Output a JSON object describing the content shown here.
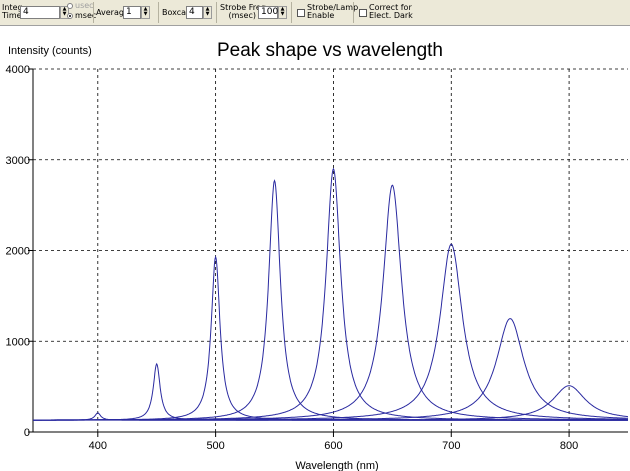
{
  "toolbar": {
    "integ_time_label_1": "Integ.",
    "integ_time_label_2": "Time",
    "integ_time_value": "4",
    "usec_label": "usec",
    "msec_label": "msec",
    "average_label": "Average",
    "average_value": "1",
    "boxcar_label": "Boxcar",
    "boxcar_value": "4",
    "strobe_freq_label_1": "Strobe Freq.",
    "strobe_freq_label_2": "(msec)",
    "strobe_freq_value": "100",
    "strobe_lamp_label_1": "Strobe/Lamp",
    "strobe_lamp_label_2": "Enable",
    "correct_dark_label_1": "Correct for",
    "correct_dark_label_2": "Elect. Dark"
  },
  "chart_data": {
    "type": "line",
    "title": "Peak shape vs wavelength",
    "ylabel": "Intensity (counts)",
    "xlabel": "Wavelength (nm)",
    "xlim": [
      345,
      850
    ],
    "ylim": [
      0,
      4000
    ],
    "xticks": [
      400,
      500,
      600,
      700,
      800
    ],
    "yticks": [
      0,
      1000,
      2000,
      3000,
      4000
    ],
    "grid": true,
    "baseline": 130,
    "line_color": "#2a2aa0",
    "series": [
      {
        "center": 400,
        "peak": 210,
        "fwhm": 6
      },
      {
        "center": 450,
        "peak": 750,
        "fwhm": 7
      },
      {
        "center": 500,
        "peak": 1930,
        "fwhm": 9
      },
      {
        "center": 550,
        "peak": 2770,
        "fwhm": 12
      },
      {
        "center": 600,
        "peak": 2900,
        "fwhm": 15
      },
      {
        "center": 650,
        "peak": 2720,
        "fwhm": 19
      },
      {
        "center": 700,
        "peak": 2070,
        "fwhm": 23
      },
      {
        "center": 750,
        "peak": 1250,
        "fwhm": 28
      },
      {
        "center": 800,
        "peak": 510,
        "fwhm": 34
      }
    ]
  }
}
